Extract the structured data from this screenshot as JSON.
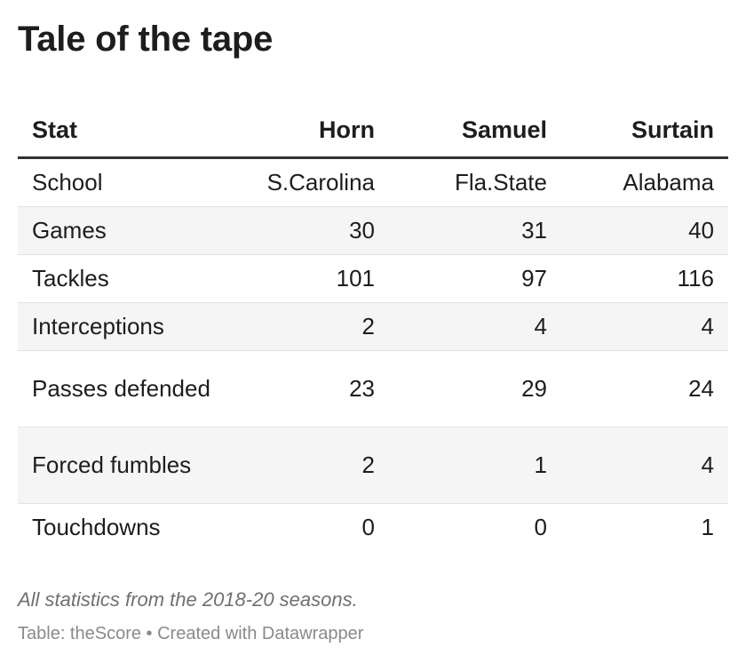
{
  "title": "Tale of the tape",
  "chart_data": {
    "type": "table",
    "title": "Tale of the tape",
    "columns": [
      "Stat",
      "Horn",
      "Samuel",
      "Surtain"
    ],
    "rows": [
      {
        "label": "School",
        "values": [
          "S.Carolina",
          "Fla.State",
          "Alabama"
        ]
      },
      {
        "label": "Games",
        "values": [
          30,
          31,
          40
        ]
      },
      {
        "label": "Tackles",
        "values": [
          101,
          97,
          116
        ]
      },
      {
        "label": "Interceptions",
        "values": [
          2,
          4,
          4
        ]
      },
      {
        "label": "Passes defended",
        "values": [
          23,
          29,
          24
        ]
      },
      {
        "label": "Forced fumbles",
        "values": [
          2,
          1,
          4
        ]
      },
      {
        "label": "Touchdowns",
        "values": [
          0,
          0,
          1
        ]
      }
    ]
  },
  "footer": {
    "notes": "All statistics from the 2018-20 seasons.",
    "source": "Table: theScore • Created with Datawrapper"
  }
}
